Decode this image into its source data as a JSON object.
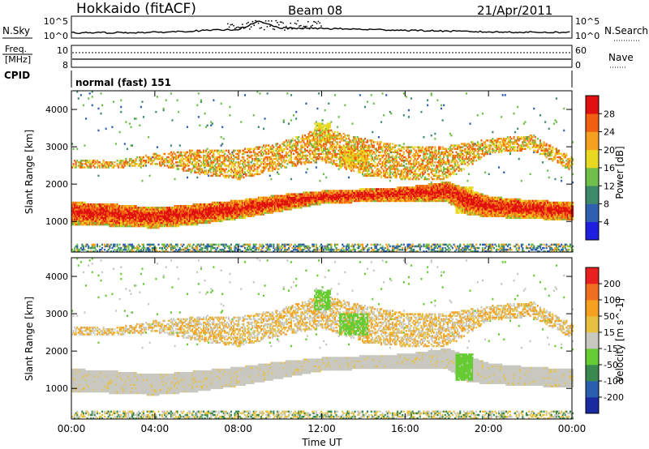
{
  "header": {
    "station": "Hokkaido (fitACF)",
    "beam": "Beam 08",
    "date": "21/Apr/2011"
  },
  "noise_panel": {
    "left_label": "N.Sky",
    "right_label": "N.Search",
    "tick_top": "10^5",
    "tick_bottom": "10^0"
  },
  "freq_panel": {
    "left_label_1": "Freq.",
    "left_label_2": "[MHz]",
    "right_label": "Nave",
    "tick_left_top": "10",
    "tick_left_bottom": "8",
    "tick_right_top": "60",
    "tick_right_bottom": "0"
  },
  "cpid_panel": {
    "label": "CPID",
    "text": "normal (fast) 151"
  },
  "colors": {
    "power_scale": [
      "#1f1fe0",
      "#2f5fb0",
      "#3d8a6a",
      "#6fbf4a",
      "#e8d820",
      "#f5a020",
      "#f06010",
      "#e01010"
    ],
    "velocity_scale": [
      "#e82020",
      "#f07020",
      "#f5a020",
      "#e8c040",
      "#c8c8c0",
      "#66cc33",
      "#3a8a50",
      "#2a5fb0",
      "#1a2aa0"
    ]
  },
  "chart_data": [
    {
      "type": "heatmap",
      "title": "Power",
      "xlabel": "",
      "ylabel": "Slant Range [km]",
      "x_ticks": [
        "00:00",
        "04:00",
        "08:00",
        "12:00",
        "16:00",
        "20:00",
        "00:00"
      ],
      "xlim_hours": [
        0,
        24
      ],
      "y_ticks": [
        1000,
        2000,
        3000,
        4000
      ],
      "ylim": [
        180,
        4500
      ],
      "colorbar": {
        "label": "Power [dB]",
        "ticks": [
          "4",
          "8",
          "12",
          "16",
          "20",
          "24",
          "28"
        ],
        "range": [
          0,
          30
        ]
      },
      "main_band": [
        {
          "t": 0,
          "lo": 900,
          "hi": 1500
        },
        {
          "t": 2,
          "lo": 850,
          "hi": 1450
        },
        {
          "t": 4,
          "lo": 800,
          "hi": 1350
        },
        {
          "t": 6,
          "lo": 900,
          "hi": 1450
        },
        {
          "t": 8,
          "lo": 1050,
          "hi": 1550
        },
        {
          "t": 10,
          "lo": 1250,
          "hi": 1700
        },
        {
          "t": 12,
          "lo": 1450,
          "hi": 1800
        },
        {
          "t": 14,
          "lo": 1500,
          "hi": 1850
        },
        {
          "t": 16,
          "lo": 1500,
          "hi": 1900
        },
        {
          "t": 18,
          "lo": 1500,
          "hi": 2050
        },
        {
          "t": 19,
          "lo": 1150,
          "hi": 1850
        },
        {
          "t": 20,
          "lo": 1100,
          "hi": 1650
        },
        {
          "t": 22,
          "lo": 1050,
          "hi": 1550
        },
        {
          "t": 24,
          "lo": 1000,
          "hi": 1500
        }
      ],
      "upper_band": [
        {
          "t": 0,
          "lo": 2400,
          "hi": 2650
        },
        {
          "t": 2,
          "lo": 2400,
          "hi": 2600
        },
        {
          "t": 4,
          "lo": 2500,
          "hi": 2800
        },
        {
          "t": 6,
          "lo": 2250,
          "hi": 2900
        },
        {
          "t": 8,
          "lo": 2100,
          "hi": 2900
        },
        {
          "t": 10,
          "lo": 2400,
          "hi": 3100
        },
        {
          "t": 12,
          "lo": 2600,
          "hi": 3500
        },
        {
          "t": 14,
          "lo": 2200,
          "hi": 3200
        },
        {
          "t": 16,
          "lo": 2100,
          "hi": 3000
        },
        {
          "t": 18,
          "lo": 2100,
          "hi": 3000
        },
        {
          "t": 20,
          "lo": 2800,
          "hi": 3200
        },
        {
          "t": 22,
          "lo": 2900,
          "hi": 3300
        },
        {
          "t": 24,
          "lo": 2300,
          "hi": 2700
        }
      ]
    },
    {
      "type": "heatmap",
      "title": "Velocity",
      "xlabel": "Time UT",
      "ylabel": "Slant Range [km]",
      "x_ticks": [
        "00:00",
        "04:00",
        "08:00",
        "12:00",
        "16:00",
        "20:00",
        "00:00"
      ],
      "xlim_hours": [
        0,
        24
      ],
      "y_ticks": [
        1000,
        2000,
        3000,
        4000
      ],
      "ylim": [
        180,
        4500
      ],
      "colorbar": {
        "label": "Velocity [m s^-1]",
        "ticks": [
          "200",
          "100",
          "50",
          "15",
          "-15",
          "-50",
          "-100",
          "-200"
        ],
        "range": [
          -250,
          250
        ]
      },
      "main_band_color": "ground scatter grey (-15 to 15)",
      "green_patches": [
        {
          "t_start": 12.8,
          "t_end": 14.2,
          "lo": 2400,
          "hi": 3000
        },
        {
          "t_start": 11.6,
          "t_end": 12.4,
          "lo": 3100,
          "hi": 3600
        },
        {
          "t_start": 18.4,
          "t_end": 19.2,
          "lo": 1200,
          "hi": 1900
        }
      ]
    }
  ],
  "noise_series": {
    "description_values": [
      {
        "t": 0,
        "v": 1.2
      },
      {
        "t": 4,
        "v": 1.3
      },
      {
        "t": 8,
        "v": 2.0
      },
      {
        "t": 9,
        "v": 3.8
      },
      {
        "t": 10,
        "v": 2.3
      },
      {
        "t": 12,
        "v": 2.2
      },
      {
        "t": 16,
        "v": 1.8
      },
      {
        "t": 20,
        "v": 1.4
      },
      {
        "t": 24,
        "v": 1.3
      }
    ]
  }
}
